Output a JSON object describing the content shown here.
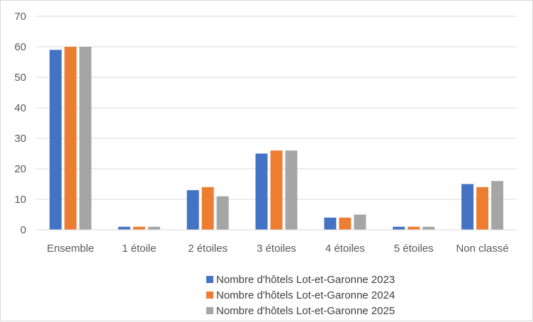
{
  "chart_data": {
    "type": "bar",
    "title": "",
    "xlabel": "",
    "ylabel": "",
    "ylim": [
      0,
      70
    ],
    "yticks": [
      0,
      10,
      20,
      30,
      40,
      50,
      60,
      70
    ],
    "grid": "horizontal",
    "legend_position": "bottom",
    "categories": [
      "Ensemble",
      "1 étoile",
      "2 étoiles",
      "3 étoiles",
      "4 étoiles",
      "5 étoiles",
      "Non classé"
    ],
    "series": [
      {
        "name": "Nombre d'hôtels Lot-et-Garonne 2023",
        "color": "#4472c4",
        "values": [
          59,
          1,
          13,
          25,
          4,
          1,
          15
        ]
      },
      {
        "name": "Nombre d'hôtels Lot-et-Garonne 2024",
        "color": "#ed7d31",
        "values": [
          60,
          1,
          14,
          26,
          4,
          1,
          14
        ]
      },
      {
        "name": "Nombre d'hôtels Lot-et-Garonne 2025",
        "color": "#a5a5a5",
        "values": [
          60,
          1,
          11,
          26,
          5,
          1,
          16
        ]
      }
    ]
  }
}
